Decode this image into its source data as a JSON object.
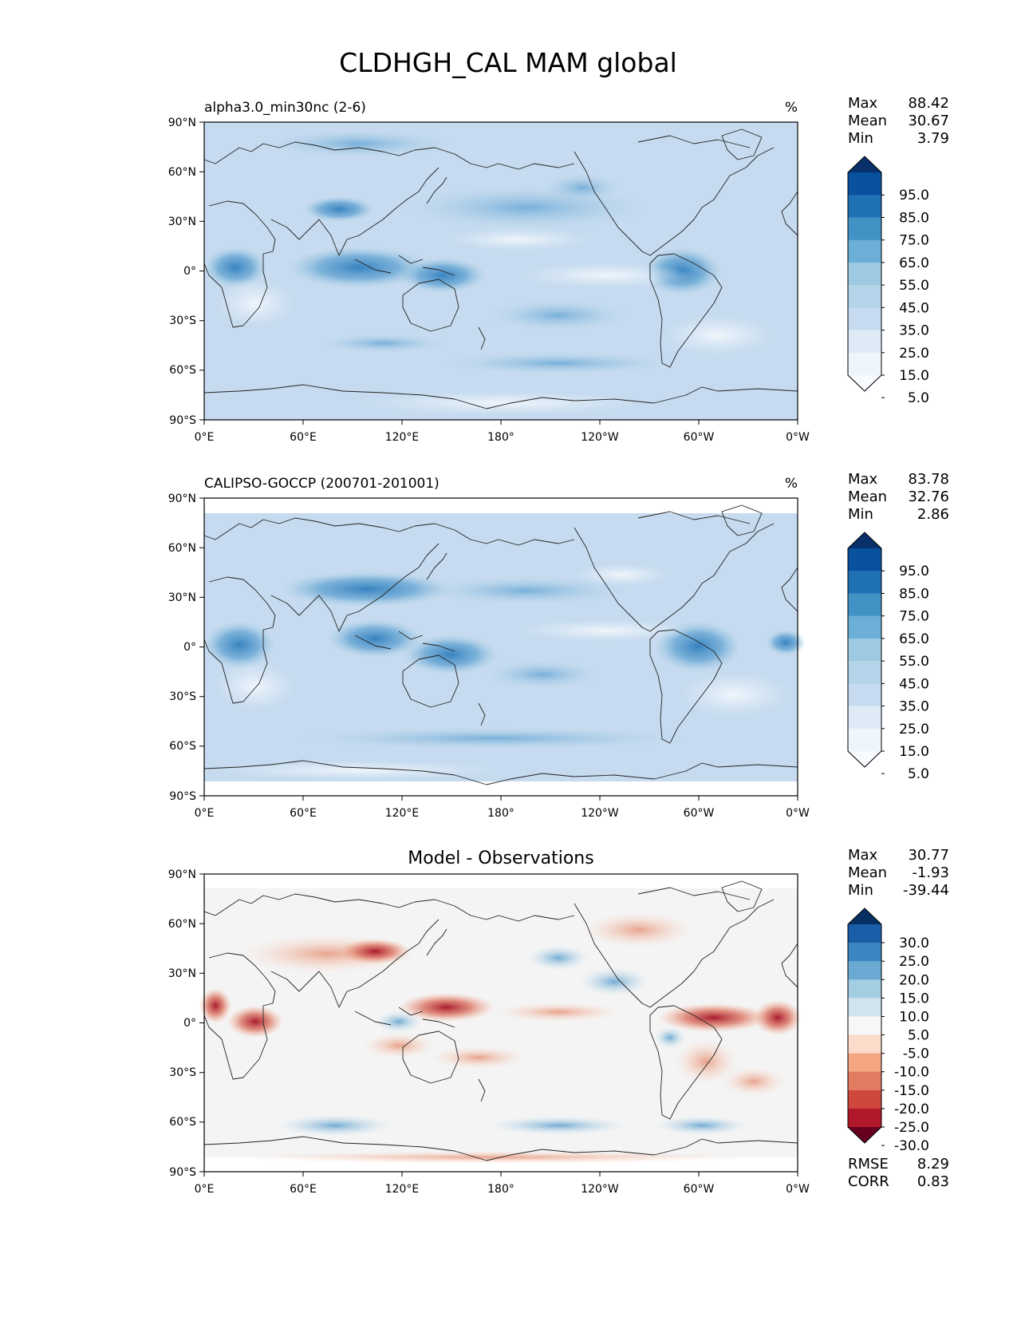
{
  "figure": {
    "title": "CLDHGH_CAL MAM global"
  },
  "panels": [
    {
      "id": "model",
      "left_title": "alpha3.0_min30nc (2-6)",
      "center_title": "",
      "units": "%",
      "stats": [
        {
          "label": "Max",
          "value": "88.42"
        },
        {
          "label": "Mean",
          "value": "30.67"
        },
        {
          "label": "Min",
          "value": "3.79"
        }
      ],
      "colorbar": {
        "labels": [
          "95.0",
          "85.0",
          "75.0",
          "65.0",
          "55.0",
          "45.0",
          "35.0",
          "25.0",
          "15.0",
          "5.0"
        ],
        "colors": [
          "#08306b",
          "#08519c",
          "#2171b5",
          "#4292c6",
          "#6baed6",
          "#9ecae1",
          "#b5d4e9",
          "#c6dbef",
          "#deebf7",
          "#eef5fc",
          "#f7fbff"
        ]
      },
      "extra_stats": []
    },
    {
      "id": "obs",
      "left_title": "CALIPSO-GOCCP (200701-201001)",
      "center_title": "",
      "units": "%",
      "stats": [
        {
          "label": "Max",
          "value": "83.78"
        },
        {
          "label": "Mean",
          "value": "32.76"
        },
        {
          "label": "Min",
          "value": "2.86"
        }
      ],
      "colorbar": {
        "labels": [
          "95.0",
          "85.0",
          "75.0",
          "65.0",
          "55.0",
          "45.0",
          "35.0",
          "25.0",
          "15.0",
          "5.0"
        ],
        "colors": [
          "#08306b",
          "#08519c",
          "#2171b5",
          "#4292c6",
          "#6baed6",
          "#9ecae1",
          "#b5d4e9",
          "#c6dbef",
          "#deebf7",
          "#eef5fc",
          "#f7fbff"
        ]
      },
      "extra_stats": []
    },
    {
      "id": "diff",
      "left_title": "",
      "center_title": "Model - Observations",
      "units": "",
      "stats": [
        {
          "label": "Max",
          "value": "30.77"
        },
        {
          "label": "Mean",
          "value": "-1.93"
        },
        {
          "label": "Min",
          "value": "-39.44"
        }
      ],
      "colorbar": {
        "labels": [
          "30.0",
          "25.0",
          "20.0",
          "15.0",
          "10.0",
          "5.0",
          "-5.0",
          "-10.0",
          "-15.0",
          "-20.0",
          "-25.0",
          "-30.0"
        ],
        "colors": [
          "#053061",
          "#1b5ea8",
          "#3a87c1",
          "#6aa9d2",
          "#a3cde3",
          "#d1e5f0",
          "#f7f7f7",
          "#fbdbc9",
          "#f4a582",
          "#e27b62",
          "#d0483d",
          "#b2182b",
          "#67001f"
        ]
      },
      "extra_stats": [
        {
          "label": "RMSE",
          "value": "8.29"
        },
        {
          "label": "CORR",
          "value": "0.83"
        }
      ]
    }
  ],
  "axes": {
    "lat_ticks": [
      "90°N",
      "60°N",
      "30°N",
      "0°",
      "30°S",
      "60°S",
      "90°S"
    ],
    "lon_ticks": [
      "0°E",
      "60°E",
      "120°E",
      "180°",
      "120°W",
      "60°W",
      "0°W"
    ]
  }
}
